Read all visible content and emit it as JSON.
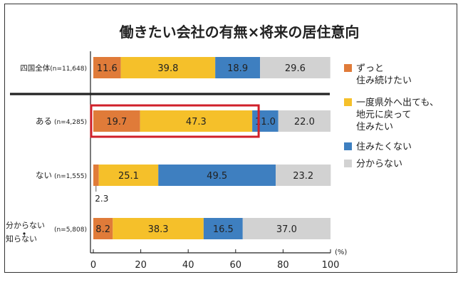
{
  "chart_data": {
    "type": "bar",
    "stacked": true,
    "orientation": "horizontal",
    "title": "働きたい会社の有無×将来の居住意向",
    "unit": "(%)",
    "xlim": [
      0,
      100
    ],
    "xticks": [
      0,
      20,
      40,
      60,
      80,
      100
    ],
    "categories": [
      {
        "main": "四国全体",
        "n": "(n=11,648)"
      },
      {
        "main": "ある",
        "n": "(n=4,285)"
      },
      {
        "main": "ない",
        "n": "(n=1,555)"
      },
      {
        "main": "分からない・知らない",
        "n": "(n=5,808)"
      }
    ],
    "series": [
      {
        "name": "ずっと住み続けたい",
        "color": "#e07b39",
        "values": [
          11.6,
          19.7,
          2.3,
          8.2
        ],
        "labels": [
          "11.6",
          "19.7",
          "2.3",
          "8.2"
        ]
      },
      {
        "name": "一度県外へ出ても、地元に戻って住みたい",
        "color": "#f5c02a",
        "values": [
          39.8,
          47.3,
          25.1,
          38.3
        ],
        "labels": [
          "39.8",
          "47.3",
          "25.1",
          "38.3"
        ]
      },
      {
        "name": "住みたくない",
        "color": "#3e7fc0",
        "values": [
          18.9,
          11.0,
          49.5,
          16.5
        ],
        "labels": [
          "18.9",
          "11.0",
          "49.5",
          "16.5"
        ]
      },
      {
        "name": "分からない",
        "color": "#d2d2d2",
        "values": [
          29.6,
          22.0,
          23.2,
          37.0
        ],
        "labels": [
          "29.6",
          "22.0",
          "23.2",
          "37.0"
        ]
      }
    ],
    "highlight": {
      "category_index": 1,
      "series_indices": [
        0,
        1
      ],
      "color": "#d0202a"
    },
    "legend_position": "right",
    "grid": false
  }
}
